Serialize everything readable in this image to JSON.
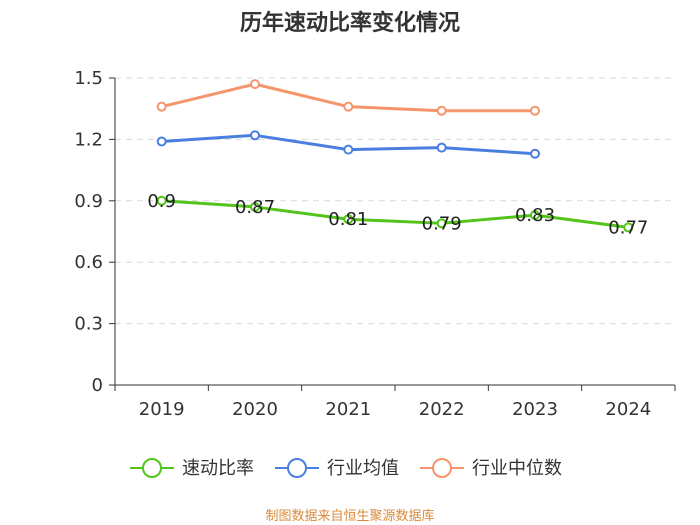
{
  "chart_data": {
    "type": "line",
    "title": "历年速动比率变化情况",
    "categories": [
      "2019",
      "2020",
      "2021",
      "2022",
      "2023",
      "2024"
    ],
    "ylim": [
      0,
      1.5
    ],
    "yticks": [
      "0",
      "0.3",
      "0.6",
      "0.9",
      "1.2",
      "1.5"
    ],
    "ytick_values": [
      0,
      0.3,
      0.6,
      0.9,
      1.2,
      1.5
    ],
    "grid": true,
    "legend_position": "bottom",
    "series": [
      {
        "name": "速动比率",
        "color": "#52c41a",
        "values": [
          0.9,
          0.87,
          0.81,
          0.79,
          0.83,
          0.77
        ],
        "labels": [
          "0.9",
          "0.87",
          "0.81",
          "0.79",
          "0.83",
          "0.77"
        ]
      },
      {
        "name": "行业均值",
        "color": "#4a7fe0",
        "values": [
          1.19,
          1.22,
          1.15,
          1.16,
          1.13,
          null
        ]
      },
      {
        "name": "行业中位数",
        "color": "#f5956b",
        "values": [
          1.36,
          1.47,
          1.36,
          1.34,
          1.34,
          null
        ]
      }
    ]
  },
  "source": "制图数据来自恒生聚源数据库"
}
